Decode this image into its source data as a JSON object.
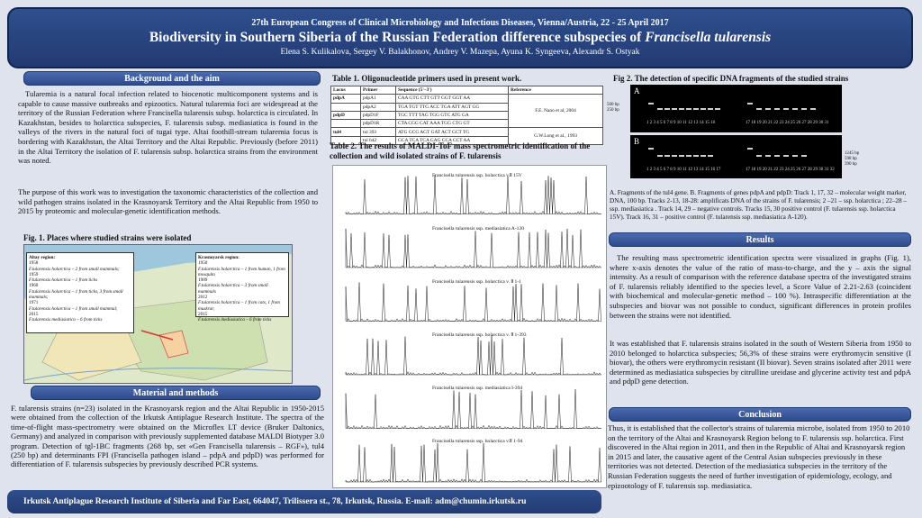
{
  "header": {
    "conference": "27th European Congress of Clinical Microbiology and Infectious Diseases, Vienna/Austria, 22 - 25 April 2017",
    "title_plain": "Biodiversity in Southern Siberia of the Russian Federation difference subspecies of ",
    "title_italic": "Francisella tularensis",
    "authors": "Elena S. Kulikalova, Sergey V. Balakhonov, Andrey V. Mazepa, Ayuna K. Syngeeva, Alexandr S. Ostyak"
  },
  "background": {
    "heading": "Background and the aim",
    "p1": "Tularemia is a natural focal infection related to biocenotic multicomponent systems and is capable to cause massive outbreaks and epizootics. Natural tularemia foci are widespread at the territory of the Russian Federation where Francisella tularensis subsp. holarctica is circulated. In Kazakhstan, besides to holarctica subspecies, F. tularensis subsp. mediasiatica is found in the valleys of the rivers in the natural foci of tugai type. Altai foothill-stream tularemia focus is bordering with Kazakhstan, the Altai Territory and the Altai Republic. Previously (before 2011) in the Altai Territory the isolation of F. tularensis subsp. holarctica strains from the environment was noted.",
    "p2": "The purpose of this work was to investigation the taxonomic characteristics of the collection and wild pathogen strains isolated in the Krasnoyarsk Territory and the Altai Republic from 1950 to 2015 by proteomic and molecular-genetic identification methods."
  },
  "fig1": {
    "caption": "Fig. 1. Places where studied strains were isolated",
    "altai_title": "Altay region:",
    "altai_lines": [
      "1958",
      "F.tularensis holarctica – 2 from small mammals;",
      "1959",
      "F.tularensis holarctica – 1 from ticks",
      "1960",
      "F.tularensis holarctica – 1 from ticks, 3 from small mammals;",
      "1971",
      "F.tularensis holarctica – 1 from small mammal;",
      "2015",
      "F.tularensis mediasiatica – 6 from ticks"
    ],
    "kras_title": "Krasnoyarsk region:",
    "kras_lines": [
      "1950",
      "F.tularensis holarctica – 1 from human, 1 from mosquito",
      "1989",
      "F.tularensis holarctica – 3 from small mammals",
      "2012",
      "F.tularensis holarctica – 1 from cats, 1 from muskrat;",
      "2015",
      "F.tularensis mediasiatica – 6 from ticks"
    ]
  },
  "methods": {
    "heading": "Material and methods",
    "text": "F. tularensis strains (n=23) isolated in the Krasnoyarsk region and the Altai Republic in 1950-2015 were obtained from the collection of the Irkutsk Antiplague Research Institute. The spectra of the time-of-flight mass-spectrometry were obtained on the Microflex LT device (Bruker Daltonics, Germany) and analyzed in comparison with previously supplemented database MALDI Biotyper 3.0 program. Detection of tgl-1BC fragments (268 bp, set «Gen Francisella tularensis – RGF»), tul4 (250 bp) and determinants FPI (Francisella pathogen island – pdpA and pdpD) was performed for differentiation of F. tularensis subspecies by previously described PCR systems."
  },
  "table1": {
    "caption": "Table 1. Oligonucleotide primers used in present work.",
    "headers": [
      "Locus",
      "Primer",
      "Sequence (5'–3')",
      "Reference"
    ],
    "rows": [
      [
        "pdpA",
        "pdpA1",
        "CAA GTG CTT GTT GGT GGT AA",
        "F.E. Nano et al, 2004"
      ],
      [
        "",
        "pdpA2",
        "TGA TGT TTG ACC TGA ATT AGT GG",
        ""
      ],
      [
        "pdpD",
        "pdpD1F",
        "TGC TTT TAG TGG GTC ATG GA",
        ""
      ],
      [
        "",
        "pdpD1R",
        "CTA CGG CAT AAA TGG CTG GT",
        ""
      ],
      [
        "tul4",
        "tul 393",
        "ATG GCG AGT GAT ACT GCT TG",
        "G.W.Long et al., 1993"
      ],
      [
        "",
        "tul 642",
        "GCA TCA TCA GAG CCA CCT AA",
        ""
      ]
    ]
  },
  "table2": {
    "caption": "Table 2. The results of MALDI-ToF mass spectrometric identification of the collection and wild isolated strains of F. tularensis",
    "spectra": [
      "Francisella tularensis ssp. holarctica v.Ⅱ 15V",
      "Francisella tularensis ssp. mediasiatica A-120",
      "Francisella tularensis ssp. holarctica v. Ⅱ 1-1",
      "Francisella tularensis ssp. holarctica v. Ⅱ 1-393",
      "Francisella tularensis ssp. mediasiatica I-394",
      "Francisella tularensis ssp. holarctica v.Ⅱ 1-94"
    ]
  },
  "fig2": {
    "caption": "Fig 2. The detection of specific DNA fragments of the studied strains",
    "panel_a": "A",
    "panel_b": "B",
    "a_markers": [
      "500 bp",
      "250 bp"
    ],
    "a_lanes": "1 2 3 4 5 6 7 8 9 10 11 12 13 14 15 16",
    "a_lanes2": "17 18 19 20 21 22 23 24 25 26 27 28 29 30 31",
    "b_lanes": "1 2 3 4 5 6 7 8 9 10 11 12 13 14 15 16 17",
    "b_lanes2": "17 18 19 20 21 22 23 24 25 26 27 28 29 30 31 32",
    "b_markers": [
      "1245 bp",
      "598 bp",
      "390 bp"
    ],
    "legend": "A. Fragments of the tul4 gene. B. Fragments of genes pdpA and pdpD: Track 1, 17, 32 – molecular weight marker, DNA, 100 bp. Tracks 2-13, 18-28: amplificats DNA of the strains of F. tularensis; 2 –21 – ssp. holarctica ; 22–28 – ssp. mediasiatica . Track 14, 29 – negative controls. Tracks 15, 30 positive control (F. tularensis ssp. holarctica 15V). Track 16, 31 – positive control (F. tularensis ssp. mediasiatica A-120)."
  },
  "results": {
    "heading": "Results",
    "p1": "The resulting mass spectrometric identification spectra were visualized in graphs (Fig. 1), where x-axis denotes the value of the ratio of mass-to-charge, and the y – axis the signal intensity. As a result of comparison with the reference database spectra of the investigated strains of F. tularensis reliably identified to the species level, a Score Value of 2.21-2.63 (coincident with biochemical and molecular-genetic method – 100 %). Intraspecific differentiation at the subspecies and biovar was not possible to conduct, significant differences in protein profiles between the strains were not identified.",
    "p2": "It was established that F. tularensis strains isolated in the south of Western Siberia from 1950 to 2010 belonged to holarctica subspecies; 56,3% of these strains were erythromycin sensitive (I biovar), the others were erythromycin resistant (II biovar). Seven strains isolated after 2011 were determined as mediasiatica subspecies by citrulline ureidase and glycerine activity test and pdpA and pdpD gene detection."
  },
  "conclusion": {
    "heading": "Conclusion",
    "text": "Thus, it is established that the collector's strains of tularemia microbe, isolated from 1950 to 2010 on the territory of the Altai and Krasnoyarsk Region belong to F. tularensis ssp. holarctica. First discovered in the Altai region in 2011, and then in the Republic of Altai and Krasnoyarsk region in 2015 and later, the causative agent of the Central Asian subspecies previously in these territories was not detected. Detection of the mediasiatica subspecies in the territory of the Russian Federation suggests the need of further investigation of epidemiology, ecology, and epizootology of F. tularensis ssp. mediasiatica."
  },
  "footer": {
    "text": "Irkutsk Antiplague Research Institute of Siberia and Far East, 664047, Trilissera st., 78, Irkutsk, Russia. E-mail: adm@chumin.irkutsk.ru"
  }
}
